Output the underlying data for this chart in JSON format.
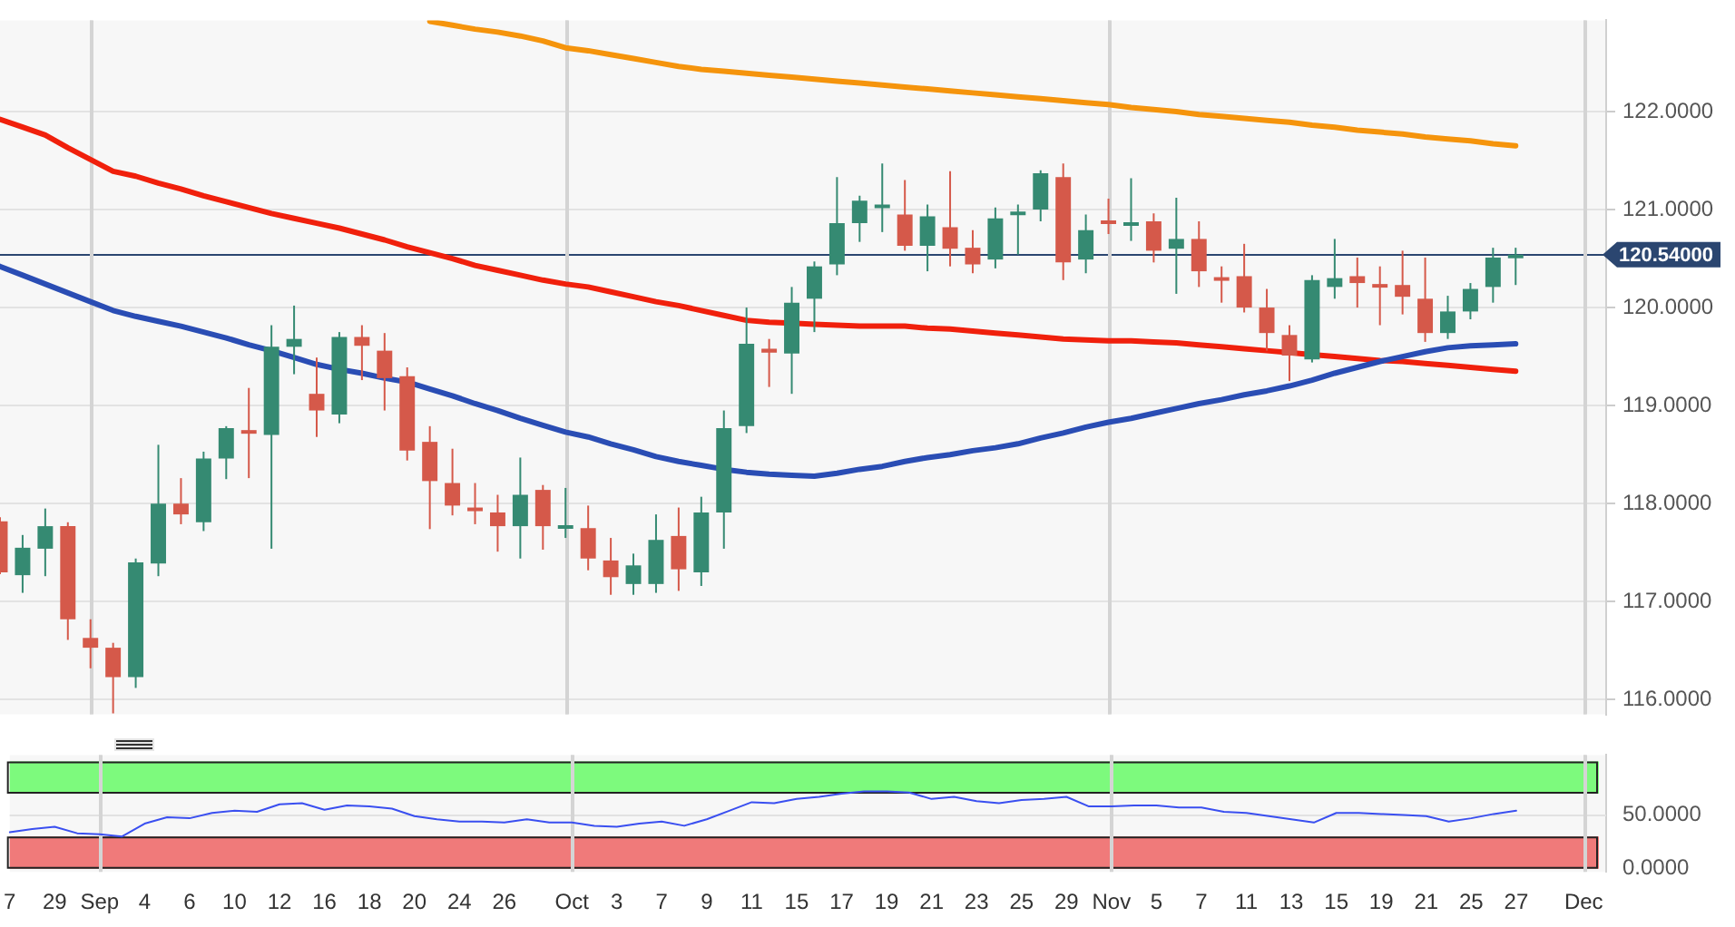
{
  "chart_data": [
    {
      "type": "candlestick",
      "categories": [
        "7",
        null,
        "29",
        null,
        "Sep",
        null,
        "4",
        null,
        "6",
        null,
        "10",
        null,
        "12",
        null,
        "16",
        null,
        "18",
        null,
        "20",
        null,
        "24",
        null,
        "26",
        null,
        null,
        "Oct",
        null,
        "3",
        null,
        "7",
        null,
        "9",
        null,
        "11",
        null,
        "15",
        null,
        "17",
        null,
        "19",
        null,
        "21",
        null,
        "23",
        null,
        "25",
        null,
        "29",
        null,
        "Nov",
        null,
        "5",
        null,
        "7",
        null,
        "11",
        null,
        "13",
        null,
        "15",
        null,
        "19",
        null,
        "21",
        null,
        "25",
        null,
        "27",
        null,
        null,
        "Dec",
        null
      ],
      "ohlc": [
        [
          117.82,
          117.86,
          117.28,
          117.3
        ],
        [
          117.27,
          117.68,
          117.09,
          117.55
        ],
        [
          117.54,
          117.95,
          117.26,
          117.77
        ],
        [
          117.77,
          117.81,
          116.61,
          116.82
        ],
        [
          116.63,
          116.82,
          116.32,
          116.53
        ],
        [
          116.53,
          116.58,
          115.86,
          116.23
        ],
        [
          116.23,
          117.44,
          116.12,
          117.4
        ],
        [
          117.39,
          118.6,
          117.26,
          118.0
        ],
        [
          118.0,
          118.26,
          117.79,
          117.89
        ],
        [
          117.81,
          118.53,
          117.72,
          118.46
        ],
        [
          118.46,
          118.79,
          118.25,
          118.77
        ],
        [
          118.75,
          119.18,
          118.26,
          118.72
        ],
        [
          118.7,
          119.82,
          117.54,
          119.6
        ],
        [
          119.6,
          120.02,
          119.32,
          119.68
        ],
        [
          119.12,
          119.49,
          118.68,
          118.95
        ],
        [
          118.91,
          119.75,
          118.82,
          119.7
        ],
        [
          119.7,
          119.82,
          119.26,
          119.61
        ],
        [
          119.56,
          119.74,
          118.95,
          119.28
        ],
        [
          119.3,
          119.39,
          118.44,
          118.54
        ],
        [
          118.63,
          118.79,
          117.74,
          118.23
        ],
        [
          118.21,
          118.56,
          117.88,
          117.98
        ],
        [
          117.96,
          118.21,
          117.79,
          117.93
        ],
        [
          117.91,
          118.09,
          117.51,
          117.77
        ],
        [
          117.77,
          118.47,
          117.44,
          118.09
        ],
        [
          118.14,
          118.19,
          117.53,
          117.77
        ],
        [
          117.76,
          118.16,
          117.65,
          117.78
        ],
        [
          117.75,
          117.98,
          117.32,
          117.44
        ],
        [
          117.42,
          117.65,
          117.07,
          117.25
        ],
        [
          117.18,
          117.49,
          117.07,
          117.37
        ],
        [
          117.18,
          117.89,
          117.09,
          117.63
        ],
        [
          117.67,
          117.96,
          117.11,
          117.33
        ],
        [
          117.3,
          118.07,
          117.16,
          117.91
        ],
        [
          117.91,
          118.95,
          117.54,
          118.77
        ],
        [
          118.79,
          120.0,
          118.72,
          119.63
        ],
        [
          119.58,
          119.68,
          119.19,
          119.54
        ],
        [
          119.53,
          120.21,
          119.12,
          120.05
        ],
        [
          120.09,
          120.47,
          119.75,
          120.42
        ],
        [
          120.44,
          121.33,
          120.33,
          120.86
        ],
        [
          120.86,
          121.14,
          120.67,
          121.09
        ],
        [
          121.03,
          121.47,
          120.77,
          121.05
        ],
        [
          120.95,
          121.3,
          120.58,
          120.63
        ],
        [
          120.63,
          121.05,
          120.37,
          120.93
        ],
        [
          120.82,
          121.39,
          120.42,
          120.6
        ],
        [
          120.61,
          120.79,
          120.35,
          120.44
        ],
        [
          120.49,
          121.02,
          120.4,
          120.91
        ],
        [
          120.95,
          121.05,
          120.54,
          120.98
        ],
        [
          121.0,
          121.4,
          120.88,
          121.37
        ],
        [
          121.33,
          121.47,
          120.28,
          120.46
        ],
        [
          120.49,
          120.95,
          120.35,
          120.79
        ],
        [
          120.89,
          121.11,
          120.75,
          120.87
        ],
        [
          120.85,
          121.32,
          120.68,
          120.87
        ],
        [
          120.88,
          120.96,
          120.46,
          120.58
        ],
        [
          120.6,
          121.12,
          120.14,
          120.7
        ],
        [
          120.7,
          120.88,
          120.21,
          120.37
        ],
        [
          120.31,
          120.42,
          120.05,
          120.29
        ],
        [
          120.32,
          120.65,
          119.95,
          120.0
        ],
        [
          120.0,
          120.19,
          119.56,
          119.74
        ],
        [
          119.72,
          119.82,
          119.25,
          119.51
        ],
        [
          119.47,
          120.33,
          119.44,
          120.28
        ],
        [
          120.21,
          120.7,
          120.09,
          120.3
        ],
        [
          120.32,
          120.51,
          120.0,
          120.25
        ],
        [
          120.24,
          120.42,
          119.82,
          120.22
        ],
        [
          120.23,
          120.58,
          119.93,
          120.11
        ],
        [
          120.09,
          120.51,
          119.65,
          119.74
        ],
        [
          119.74,
          120.12,
          119.68,
          119.96
        ],
        [
          119.96,
          120.25,
          119.88,
          120.19
        ],
        [
          120.21,
          120.61,
          120.05,
          120.51
        ],
        [
          120.52,
          120.61,
          120.23,
          120.54
        ],
        null,
        null,
        null,
        null
      ],
      "series": [
        {
          "type": "line",
          "color": "#2a4db4",
          "values": [
            120.42,
            120.33,
            120.24,
            120.15,
            120.06,
            119.97,
            119.91,
            119.86,
            119.81,
            119.75,
            119.69,
            119.62,
            119.56,
            119.49,
            119.42,
            119.37,
            119.33,
            119.28,
            119.24,
            119.17,
            119.1,
            119.02,
            118.95,
            118.87,
            118.8,
            118.73,
            118.68,
            118.61,
            118.55,
            118.48,
            118.43,
            118.39,
            118.35,
            118.32,
            118.3,
            118.29,
            118.28,
            118.31,
            118.35,
            118.38,
            118.43,
            118.47,
            118.5,
            118.54,
            118.57,
            118.61,
            118.67,
            118.72,
            118.78,
            118.83,
            118.87,
            118.92,
            118.97,
            119.02,
            119.06,
            119.11,
            119.15,
            119.2,
            119.26,
            119.33,
            119.39,
            119.45,
            119.5,
            119.55,
            119.59,
            119.61,
            119.62,
            119.63,
            null,
            null,
            null,
            null
          ]
        },
        {
          "type": "line",
          "color": "#f0200c",
          "values": [
            121.92,
            121.84,
            121.76,
            121.63,
            121.51,
            121.39,
            121.34,
            121.27,
            121.21,
            121.14,
            121.08,
            121.02,
            120.96,
            120.91,
            120.86,
            120.81,
            120.75,
            120.69,
            120.62,
            120.56,
            120.5,
            120.43,
            120.38,
            120.33,
            120.28,
            120.24,
            120.21,
            120.16,
            120.11,
            120.06,
            120.02,
            119.97,
            119.92,
            119.87,
            119.85,
            119.84,
            119.83,
            119.82,
            119.81,
            119.81,
            119.81,
            119.79,
            119.78,
            119.76,
            119.74,
            119.72,
            119.7,
            119.68,
            119.67,
            119.66,
            119.66,
            119.65,
            119.64,
            119.62,
            119.6,
            119.58,
            119.56,
            119.54,
            119.52,
            119.5,
            119.48,
            119.46,
            119.45,
            119.43,
            119.41,
            119.39,
            119.37,
            119.35,
            null,
            null,
            null,
            null
          ]
        },
        {
          "type": "line",
          "color": "#f5940c",
          "values": [
            null,
            null,
            null,
            null,
            null,
            null,
            null,
            null,
            null,
            null,
            null,
            null,
            null,
            null,
            null,
            null,
            null,
            null,
            null,
            122.92,
            122.88,
            122.84,
            122.81,
            122.77,
            122.72,
            122.65,
            122.62,
            122.58,
            122.54,
            122.5,
            122.46,
            122.43,
            122.41,
            122.39,
            122.37,
            122.35,
            122.33,
            122.31,
            122.29,
            122.27,
            122.25,
            122.23,
            122.21,
            122.19,
            122.17,
            122.15,
            122.13,
            122.11,
            122.09,
            122.07,
            122.04,
            122.02,
            122.0,
            121.97,
            121.95,
            121.93,
            121.91,
            121.89,
            121.86,
            121.84,
            121.81,
            121.79,
            121.77,
            121.74,
            121.72,
            121.7,
            121.67,
            121.65,
            null,
            null,
            null,
            null
          ]
        }
      ],
      "ylim": [
        115.85,
        122.93
      ],
      "yticks": [
        {
          "value": 116,
          "label": "116.0000"
        },
        {
          "value": 117,
          "label": "117.0000"
        },
        {
          "value": 118,
          "label": "118.0000"
        },
        {
          "value": 119,
          "label": "119.0000"
        },
        {
          "value": 120,
          "label": "120.0000"
        },
        {
          "value": 121,
          "label": "121.0000"
        },
        {
          "value": 122,
          "label": "122.0000"
        }
      ],
      "ref_lines": [
        {
          "axis": "y",
          "value": 120.54,
          "label": "120.54000",
          "color": "#2b4670"
        },
        {
          "axis": "x",
          "value": "Sep",
          "color": "#e2e2e2"
        },
        {
          "axis": "x",
          "value": "Oct",
          "color": "#e2e2e2"
        },
        {
          "axis": "x",
          "value": "Nov",
          "color": "#e2e2e2"
        },
        {
          "axis": "x",
          "value": "Dec",
          "color": "#e2e2e2"
        }
      ],
      "grid": "y",
      "legend": false,
      "marker": "none",
      "tick_labels": "y"
    },
    {
      "type": "line",
      "categories": [
        "7",
        null,
        "29",
        null,
        "Sep",
        null,
        "4",
        null,
        "6",
        null,
        "10",
        null,
        "12",
        null,
        "16",
        null,
        "18",
        null,
        "20",
        null,
        "24",
        null,
        "26",
        null,
        null,
        "Oct",
        null,
        "3",
        null,
        "7",
        null,
        "9",
        null,
        "11",
        null,
        "15",
        null,
        "17",
        null,
        "19",
        null,
        "21",
        null,
        "23",
        null,
        "25",
        null,
        "29",
        null,
        "Nov",
        null,
        "5",
        null,
        "7",
        null,
        "11",
        null,
        "13",
        null,
        "15",
        null,
        "19",
        null,
        "21",
        null,
        "25",
        null,
        "27",
        null,
        null,
        "Dec",
        null
      ],
      "series": [
        {
          "color": "#3a4ff0",
          "values": [
            34,
            37,
            39,
            33,
            32,
            30,
            42,
            48,
            47,
            52,
            54,
            53,
            60,
            61,
            55,
            59,
            58,
            56,
            49,
            46,
            44,
            44,
            43,
            46,
            43,
            43,
            40,
            39,
            42,
            44,
            40,
            46,
            54,
            62,
            61,
            65,
            67,
            70,
            72,
            72,
            71,
            65,
            67,
            63,
            61,
            64,
            65,
            67,
            58,
            58,
            59,
            59,
            57,
            57,
            53,
            52,
            49,
            46,
            43,
            52,
            52,
            51,
            50,
            49,
            44,
            47,
            51,
            54,
            null,
            null,
            null,
            null
          ]
        }
      ],
      "ylim": [
        -3,
        106
      ],
      "yticks": [
        {
          "value": 0,
          "label": "0.0000"
        },
        {
          "value": 50,
          "label": "50.0000"
        }
      ],
      "bands": [
        {
          "axis": "y",
          "from": 70,
          "to": 100,
          "color": "#7dfa7d"
        },
        {
          "axis": "y",
          "from": 0,
          "to": 30,
          "color": "#f07a7a"
        }
      ],
      "ref_lines": [
        {
          "axis": "y",
          "value": 50,
          "color": "#e2e2e2"
        },
        {
          "axis": "x",
          "value": "Sep",
          "color": "#e2e2e2"
        },
        {
          "axis": "x",
          "value": "Oct",
          "color": "#e2e2e2"
        },
        {
          "axis": "x",
          "value": "Nov",
          "color": "#e2e2e2"
        },
        {
          "axis": "x",
          "value": "Dec",
          "color": "#e2e2e2"
        }
      ],
      "legend": false,
      "marker": "none"
    }
  ]
}
